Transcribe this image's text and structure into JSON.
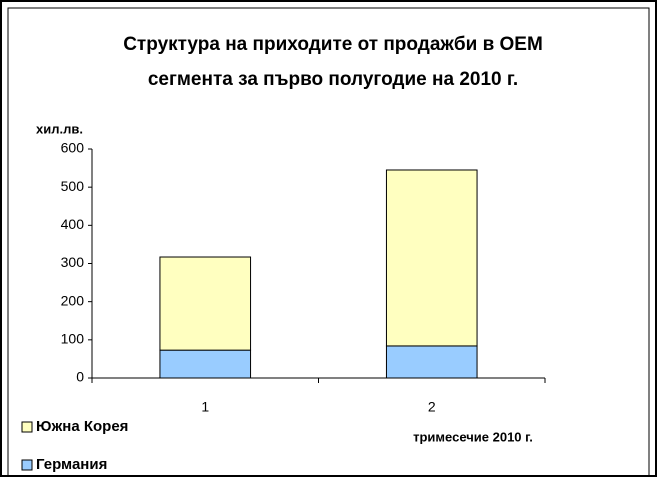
{
  "chart_data": {
    "type": "bar",
    "stacked": true,
    "title": [
      "Структура на приходите от продажби в ОЕМ",
      "сегмента за първо полугодие на 2010 г."
    ],
    "y_label": "хил.лв.",
    "x_label": "тримесечие 2010 г.",
    "categories": [
      "1",
      "2"
    ],
    "series": [
      {
        "name": "Германия",
        "color": "#99ccff",
        "values": [
          73,
          84
        ]
      },
      {
        "name": "Южна Корея",
        "color": "#ffffc0",
        "values": [
          244,
          461
        ]
      }
    ],
    "ylim": [
      0,
      600
    ],
    "yticks": [
      0,
      100,
      200,
      300,
      400,
      500,
      600
    ]
  }
}
